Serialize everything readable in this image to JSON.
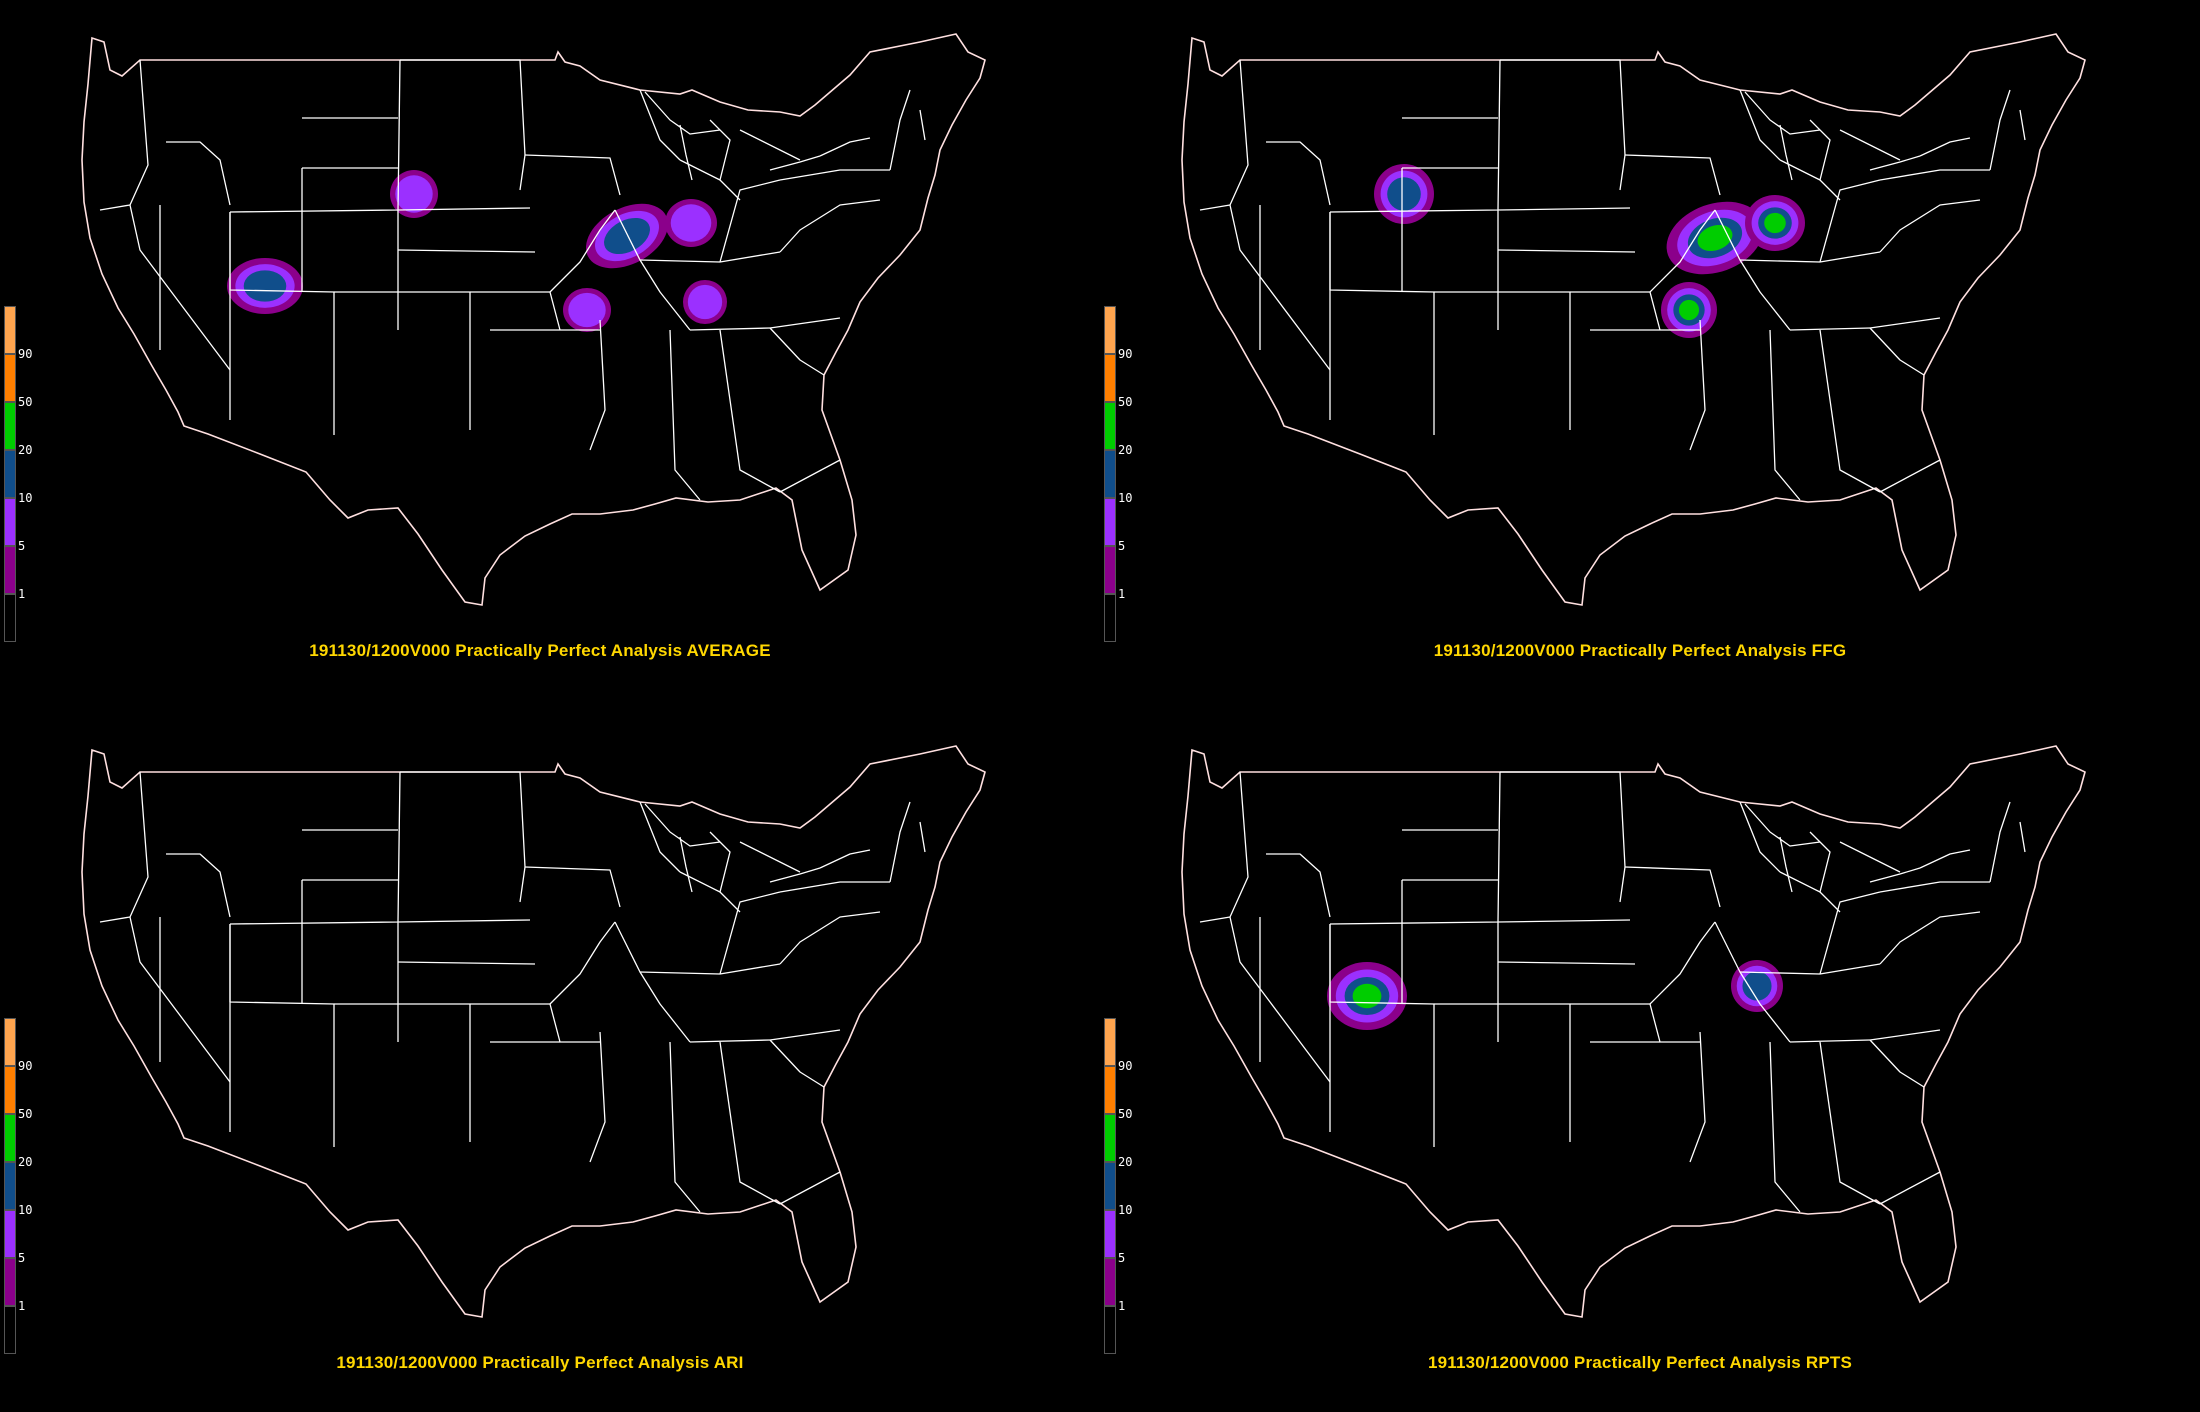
{
  "colorbar": {
    "levels": [
      "1",
      "5",
      "10",
      "20",
      "50",
      "90"
    ],
    "colors": [
      "#000000",
      "#8b008b",
      "#9b30ff",
      "#104e8b",
      "#00cd00",
      "#ff7f00",
      "#ffa54f"
    ]
  },
  "panels": [
    {
      "id": "average",
      "title": "191130/1200V000 Practically Perfect Analysis AVERAGE"
    },
    {
      "id": "ffg",
      "title": "191130/1200V000 Practically Perfect Analysis FFG"
    },
    {
      "id": "ari",
      "title": "191130/1200V000 Practically Perfect Analysis ARI"
    },
    {
      "id": "rpts",
      "title": "191130/1200V000 Practically Perfect Analysis RPTS"
    }
  ]
}
